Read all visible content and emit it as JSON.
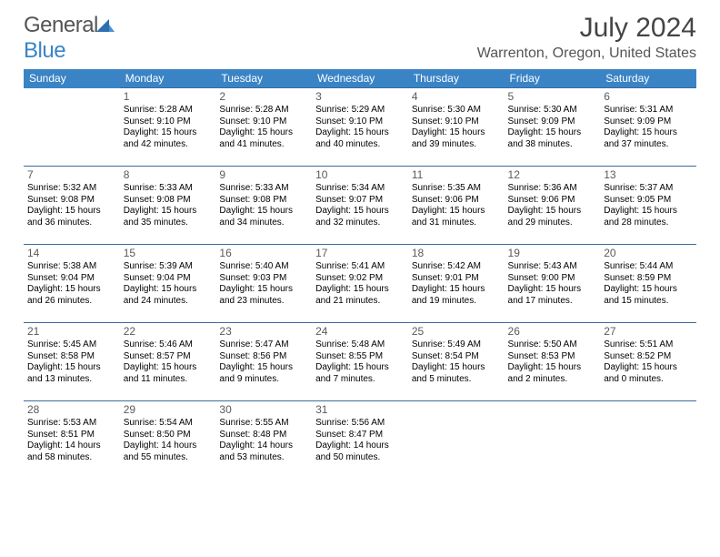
{
  "logo": {
    "word1": "General",
    "word2": "Blue"
  },
  "header": {
    "month_title": "July 2024",
    "location": "Warrenton, Oregon, United States"
  },
  "daysOfWeek": [
    "Sunday",
    "Monday",
    "Tuesday",
    "Wednesday",
    "Thursday",
    "Friday",
    "Saturday"
  ],
  "colors": {
    "header_bg": "#3a84c6",
    "border": "#3a6a9c",
    "logo_blue": "#3a84c6"
  },
  "weeks": [
    [
      null,
      {
        "n": "1",
        "sr": "Sunrise: 5:28 AM",
        "ss": "Sunset: 9:10 PM",
        "d1": "Daylight: 15 hours",
        "d2": "and 42 minutes."
      },
      {
        "n": "2",
        "sr": "Sunrise: 5:28 AM",
        "ss": "Sunset: 9:10 PM",
        "d1": "Daylight: 15 hours",
        "d2": "and 41 minutes."
      },
      {
        "n": "3",
        "sr": "Sunrise: 5:29 AM",
        "ss": "Sunset: 9:10 PM",
        "d1": "Daylight: 15 hours",
        "d2": "and 40 minutes."
      },
      {
        "n": "4",
        "sr": "Sunrise: 5:30 AM",
        "ss": "Sunset: 9:10 PM",
        "d1": "Daylight: 15 hours",
        "d2": "and 39 minutes."
      },
      {
        "n": "5",
        "sr": "Sunrise: 5:30 AM",
        "ss": "Sunset: 9:09 PM",
        "d1": "Daylight: 15 hours",
        "d2": "and 38 minutes."
      },
      {
        "n": "6",
        "sr": "Sunrise: 5:31 AM",
        "ss": "Sunset: 9:09 PM",
        "d1": "Daylight: 15 hours",
        "d2": "and 37 minutes."
      }
    ],
    [
      {
        "n": "7",
        "sr": "Sunrise: 5:32 AM",
        "ss": "Sunset: 9:08 PM",
        "d1": "Daylight: 15 hours",
        "d2": "and 36 minutes."
      },
      {
        "n": "8",
        "sr": "Sunrise: 5:33 AM",
        "ss": "Sunset: 9:08 PM",
        "d1": "Daylight: 15 hours",
        "d2": "and 35 minutes."
      },
      {
        "n": "9",
        "sr": "Sunrise: 5:33 AM",
        "ss": "Sunset: 9:08 PM",
        "d1": "Daylight: 15 hours",
        "d2": "and 34 minutes."
      },
      {
        "n": "10",
        "sr": "Sunrise: 5:34 AM",
        "ss": "Sunset: 9:07 PM",
        "d1": "Daylight: 15 hours",
        "d2": "and 32 minutes."
      },
      {
        "n": "11",
        "sr": "Sunrise: 5:35 AM",
        "ss": "Sunset: 9:06 PM",
        "d1": "Daylight: 15 hours",
        "d2": "and 31 minutes."
      },
      {
        "n": "12",
        "sr": "Sunrise: 5:36 AM",
        "ss": "Sunset: 9:06 PM",
        "d1": "Daylight: 15 hours",
        "d2": "and 29 minutes."
      },
      {
        "n": "13",
        "sr": "Sunrise: 5:37 AM",
        "ss": "Sunset: 9:05 PM",
        "d1": "Daylight: 15 hours",
        "d2": "and 28 minutes."
      }
    ],
    [
      {
        "n": "14",
        "sr": "Sunrise: 5:38 AM",
        "ss": "Sunset: 9:04 PM",
        "d1": "Daylight: 15 hours",
        "d2": "and 26 minutes."
      },
      {
        "n": "15",
        "sr": "Sunrise: 5:39 AM",
        "ss": "Sunset: 9:04 PM",
        "d1": "Daylight: 15 hours",
        "d2": "and 24 minutes."
      },
      {
        "n": "16",
        "sr": "Sunrise: 5:40 AM",
        "ss": "Sunset: 9:03 PM",
        "d1": "Daylight: 15 hours",
        "d2": "and 23 minutes."
      },
      {
        "n": "17",
        "sr": "Sunrise: 5:41 AM",
        "ss": "Sunset: 9:02 PM",
        "d1": "Daylight: 15 hours",
        "d2": "and 21 minutes."
      },
      {
        "n": "18",
        "sr": "Sunrise: 5:42 AM",
        "ss": "Sunset: 9:01 PM",
        "d1": "Daylight: 15 hours",
        "d2": "and 19 minutes."
      },
      {
        "n": "19",
        "sr": "Sunrise: 5:43 AM",
        "ss": "Sunset: 9:00 PM",
        "d1": "Daylight: 15 hours",
        "d2": "and 17 minutes."
      },
      {
        "n": "20",
        "sr": "Sunrise: 5:44 AM",
        "ss": "Sunset: 8:59 PM",
        "d1": "Daylight: 15 hours",
        "d2": "and 15 minutes."
      }
    ],
    [
      {
        "n": "21",
        "sr": "Sunrise: 5:45 AM",
        "ss": "Sunset: 8:58 PM",
        "d1": "Daylight: 15 hours",
        "d2": "and 13 minutes."
      },
      {
        "n": "22",
        "sr": "Sunrise: 5:46 AM",
        "ss": "Sunset: 8:57 PM",
        "d1": "Daylight: 15 hours",
        "d2": "and 11 minutes."
      },
      {
        "n": "23",
        "sr": "Sunrise: 5:47 AM",
        "ss": "Sunset: 8:56 PM",
        "d1": "Daylight: 15 hours",
        "d2": "and 9 minutes."
      },
      {
        "n": "24",
        "sr": "Sunrise: 5:48 AM",
        "ss": "Sunset: 8:55 PM",
        "d1": "Daylight: 15 hours",
        "d2": "and 7 minutes."
      },
      {
        "n": "25",
        "sr": "Sunrise: 5:49 AM",
        "ss": "Sunset: 8:54 PM",
        "d1": "Daylight: 15 hours",
        "d2": "and 5 minutes."
      },
      {
        "n": "26",
        "sr": "Sunrise: 5:50 AM",
        "ss": "Sunset: 8:53 PM",
        "d1": "Daylight: 15 hours",
        "d2": "and 2 minutes."
      },
      {
        "n": "27",
        "sr": "Sunrise: 5:51 AM",
        "ss": "Sunset: 8:52 PM",
        "d1": "Daylight: 15 hours",
        "d2": "and 0 minutes."
      }
    ],
    [
      {
        "n": "28",
        "sr": "Sunrise: 5:53 AM",
        "ss": "Sunset: 8:51 PM",
        "d1": "Daylight: 14 hours",
        "d2": "and 58 minutes."
      },
      {
        "n": "29",
        "sr": "Sunrise: 5:54 AM",
        "ss": "Sunset: 8:50 PM",
        "d1": "Daylight: 14 hours",
        "d2": "and 55 minutes."
      },
      {
        "n": "30",
        "sr": "Sunrise: 5:55 AM",
        "ss": "Sunset: 8:48 PM",
        "d1": "Daylight: 14 hours",
        "d2": "and 53 minutes."
      },
      {
        "n": "31",
        "sr": "Sunrise: 5:56 AM",
        "ss": "Sunset: 8:47 PM",
        "d1": "Daylight: 14 hours",
        "d2": "and 50 minutes."
      },
      null,
      null,
      null
    ]
  ]
}
